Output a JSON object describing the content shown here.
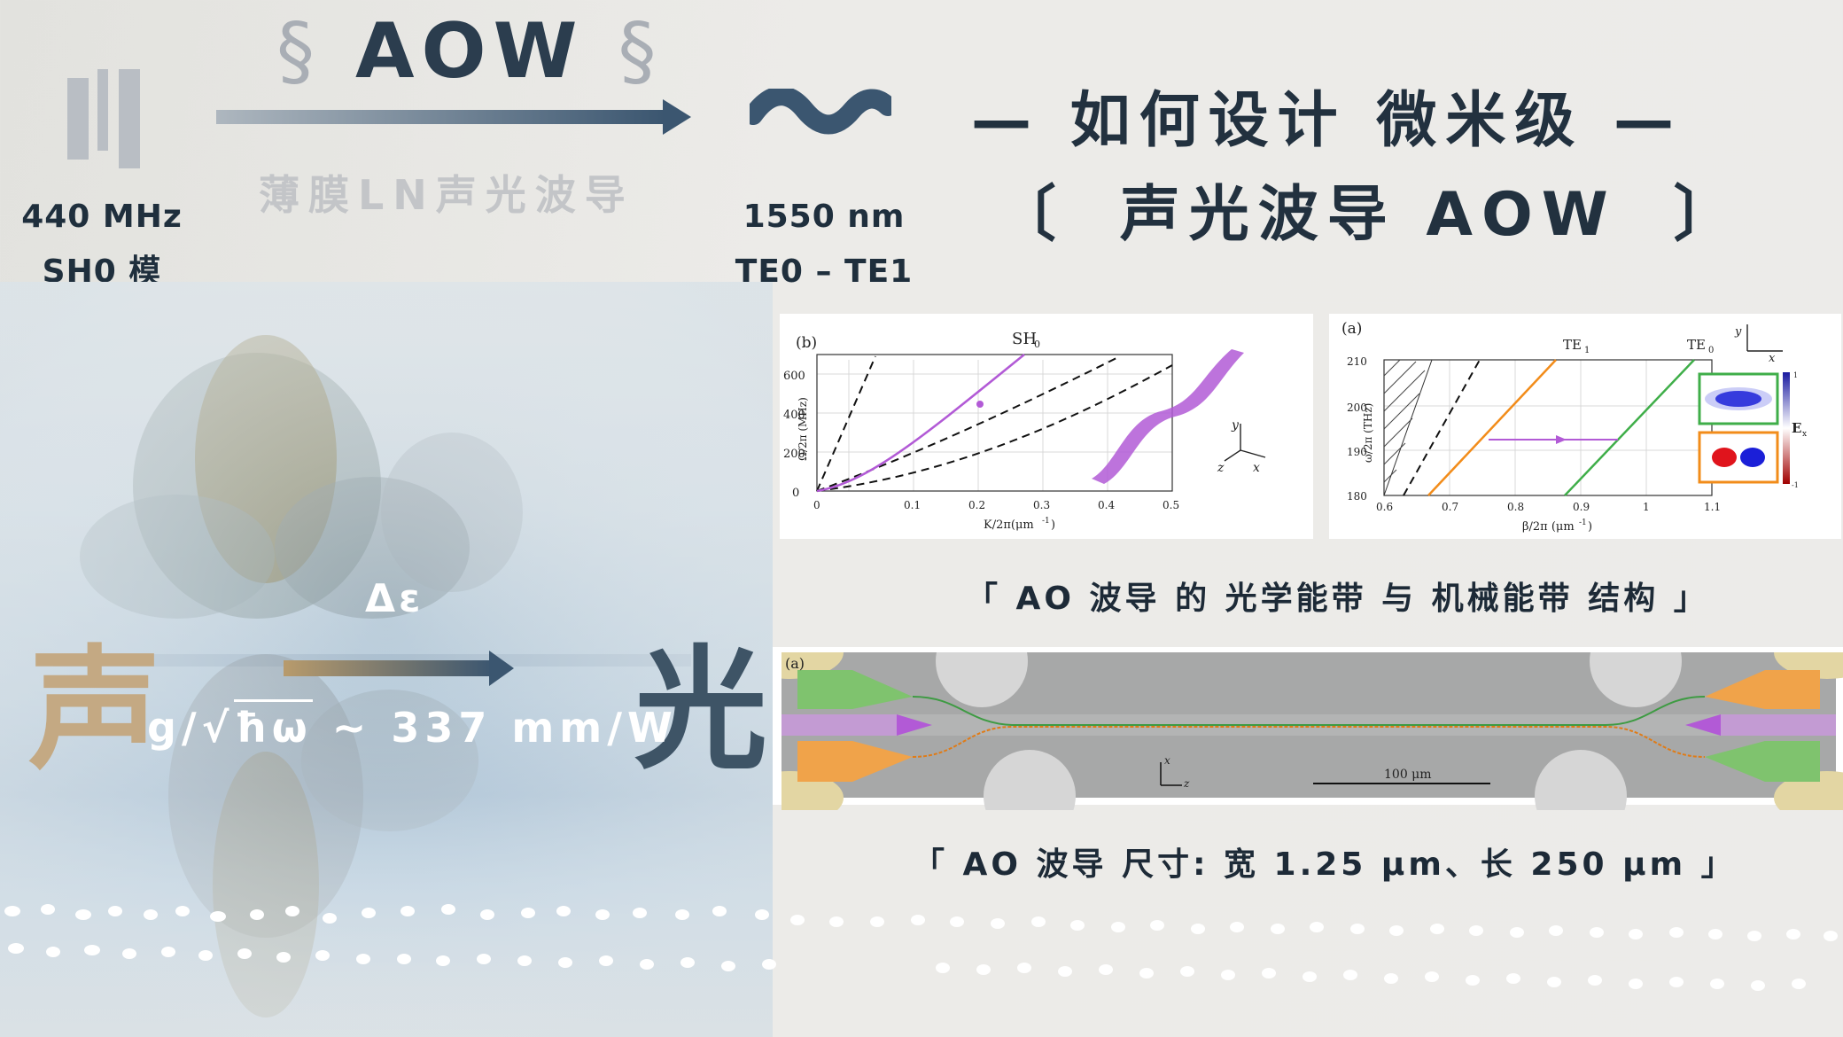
{
  "colors": {
    "navy": "#2b3d4e",
    "gray_light": "#b9bec4",
    "tan": "#b79a70",
    "purple": "#b25ad6",
    "orange": "#f28c1a",
    "green": "#3fae49",
    "white_dots": "#ffffff"
  },
  "icons": [
    "bars-icon",
    "arrow-right-icon",
    "wave-icon",
    "thumbnail-arrow-icon"
  ],
  "header": {
    "left_freq": "440 MHz",
    "left_mode": "SH0 模",
    "aow_title": "AOW",
    "section_sign": "§",
    "subtitle": "薄膜LN声光波导",
    "right_wavelength": "1550 nm",
    "right_modes": "TE0 – TE1",
    "headline_line1": "— 如何设计 微米级 —",
    "headline_line2_open": "〔",
    "headline_line2_text": "声光波导 AOW",
    "headline_line2_close": "〕"
  },
  "photo_overlay": {
    "sound_char": "声",
    "light_char": "光",
    "delta_eps": "Δε",
    "coupling_prefix": "g/",
    "coupling_sqrt_arg": "ħω",
    "coupling_suffix": " ~ 337 mm/W"
  },
  "figures": {
    "fig_b": {
      "panel_label": "(b)",
      "title": "SH",
      "title_sub": "0",
      "ylabel": "Ω/2π (MHz)",
      "xlabel": "K/2π(μm",
      "xlabel_sup": "-1",
      "xlabel_end": ")",
      "x_ticks": [
        "0",
        "0.1",
        "0.2",
        "0.3",
        "0.4",
        "0.5"
      ],
      "y_ticks": [
        "0",
        "200",
        "400",
        "600"
      ],
      "axis_y": "y",
      "axis_x": "x",
      "axis_z": "z"
    },
    "fig_a": {
      "panel_label": "(a)",
      "label_te1": "TE",
      "label_te1_sub": "1",
      "label_te0": "TE",
      "label_te0_sub": "0",
      "ylabel": "ω/2π (THz)",
      "xlabel": "β/2π (μm",
      "xlabel_sup": "-1",
      "xlabel_end": ")",
      "x_ticks": [
        "0.6",
        "0.7",
        "0.8",
        "0.9",
        "1",
        "1.1"
      ],
      "y_ticks": [
        "180",
        "190",
        "200",
        "210"
      ],
      "colorbar_label": "E",
      "colorbar_sub": "x",
      "colorbar_top": "1",
      "colorbar_bottom": "-1",
      "axis_y": "y",
      "axis_x": "x"
    },
    "caption1": "「 AO 波导 的 光学能带 与 机械能带 结构 」",
    "device": {
      "panel_label": "(a)",
      "scale_text": "100 μm",
      "axis_x": "x",
      "axis_z": "z"
    },
    "caption2": "「 AO 波导 尺寸: 宽  1.25 μm、长  250 μm 」"
  }
}
